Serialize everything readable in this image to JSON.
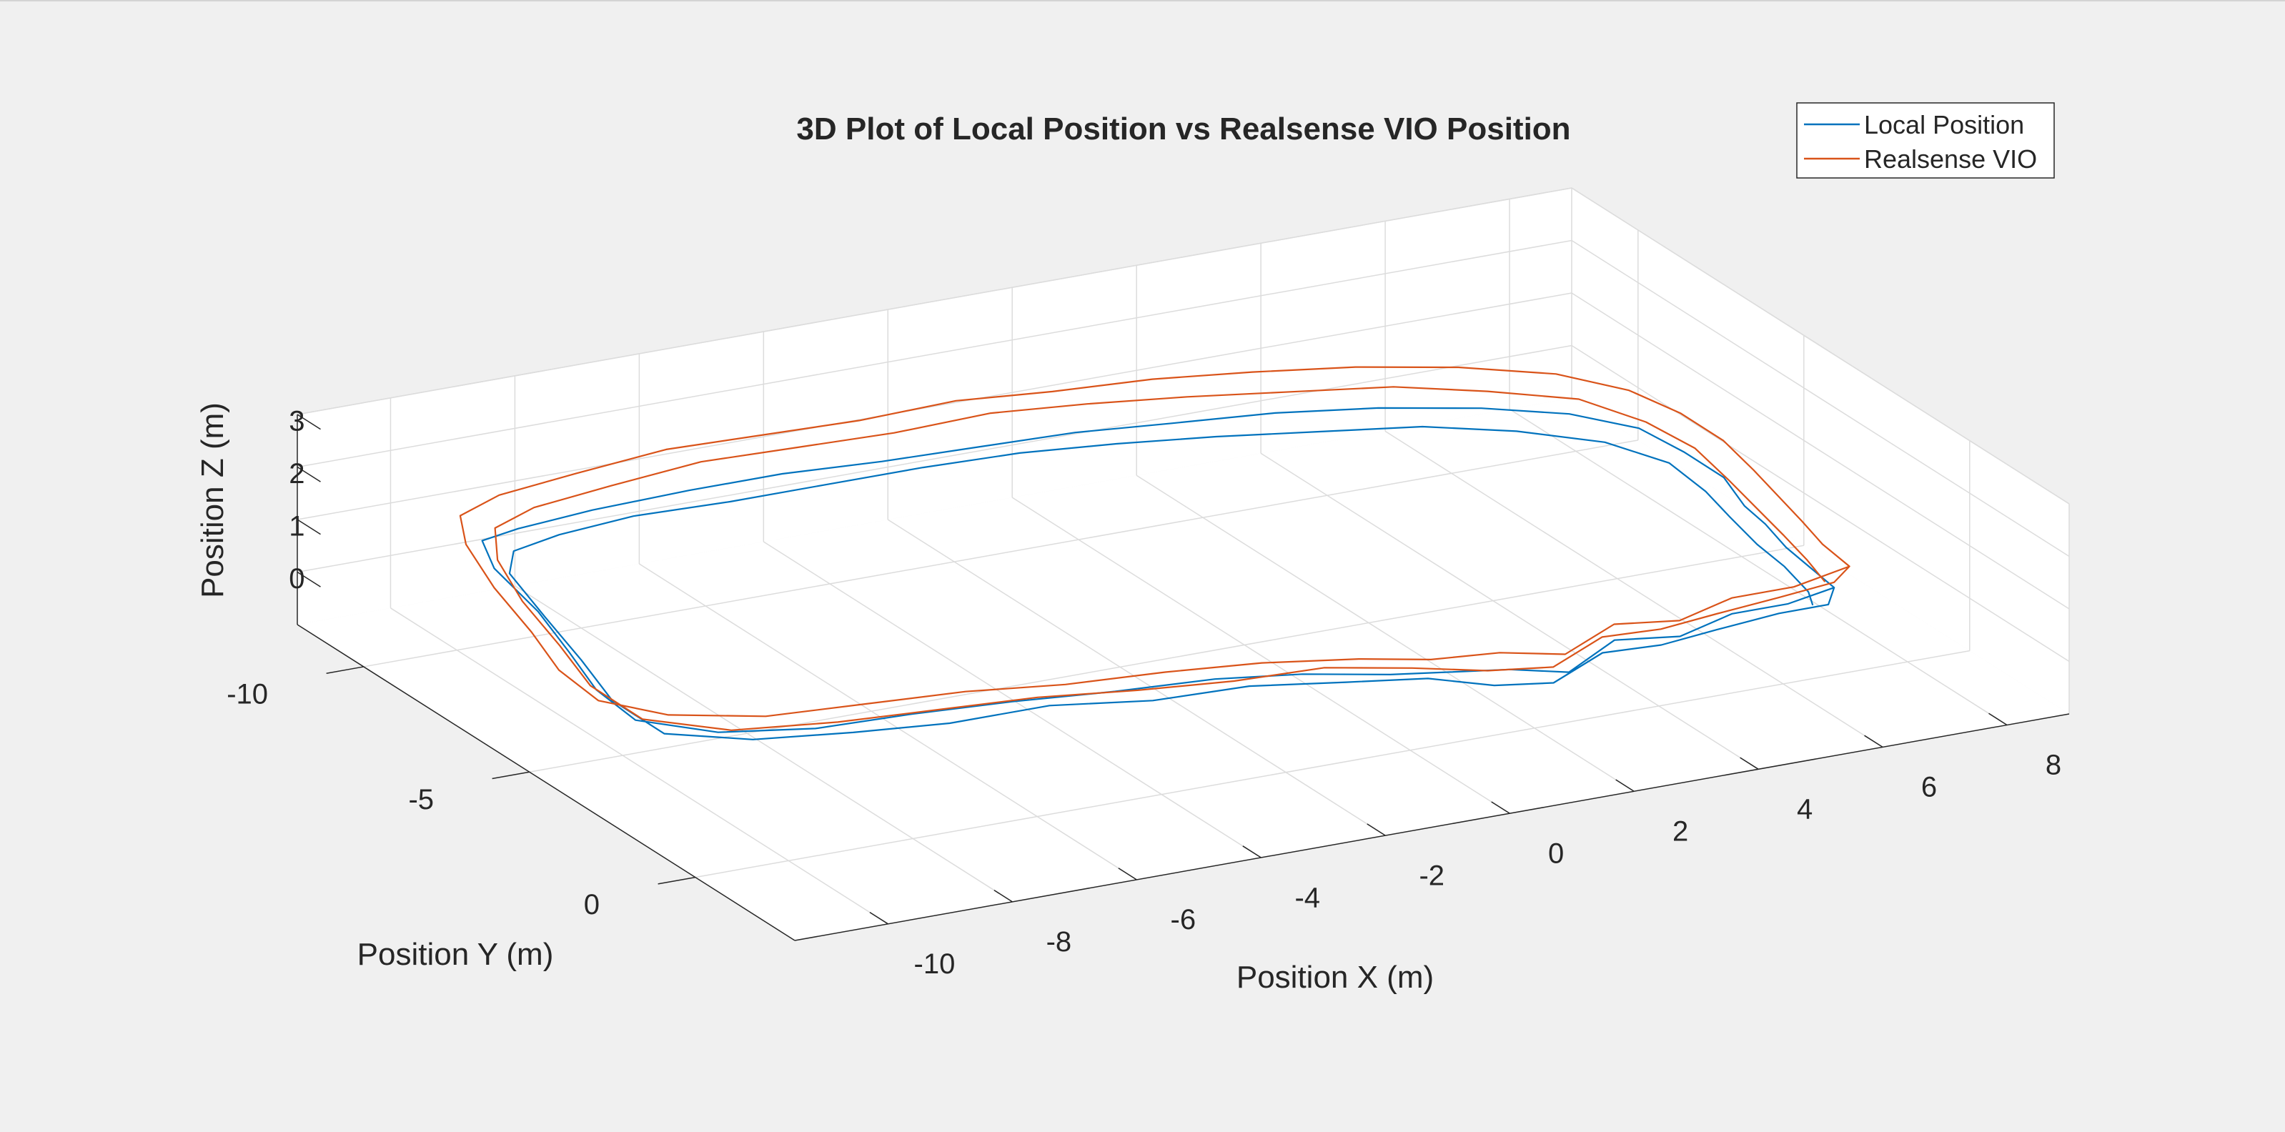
{
  "chart_data": {
    "type": "line3d",
    "title": "3D Plot of Local Position vs Realsense VIO Position",
    "xlabel": "Position X (m)",
    "ylabel": "Position Y (m)",
    "zlabel": "Position Z (m)",
    "xlim": [
      -11.5,
      9
    ],
    "ylim": [
      -12,
      3
    ],
    "zlim": [
      -1,
      3
    ],
    "x_ticks": [
      8,
      6,
      4,
      2,
      0,
      -2,
      -4,
      -6,
      -8,
      -10
    ],
    "y_ticks": [
      -10,
      -5,
      0
    ],
    "z_ticks": [
      0,
      1,
      2,
      3
    ],
    "x_tick_labels": [
      "8",
      "6",
      "4",
      "2",
      "0",
      "-2",
      "-4",
      "-6",
      "-8",
      "-10"
    ],
    "y_tick_labels": [
      "-10",
      "-5",
      "0"
    ],
    "z_tick_labels": [
      "0",
      "1",
      "2",
      "3"
    ],
    "grid": true,
    "legend_position": "top-right",
    "series": [
      {
        "name": "Local Position",
        "color": "#0072BD",
        "points": [
          [
            7.3,
            -0.9,
            0.2
          ],
          [
            6.4,
            -0.6,
            0.2
          ],
          [
            5.5,
            -0.6,
            0.2
          ],
          [
            4.5,
            -0.3,
            0.1
          ],
          [
            3.5,
            -0.4,
            0.2
          ],
          [
            2.5,
            0.1,
            0.0
          ],
          [
            1.6,
            0.0,
            0.2
          ],
          [
            0.8,
            -0.3,
            0.2
          ],
          [
            0.0,
            -0.6,
            0.2
          ],
          [
            -1.2,
            -1.0,
            0.3
          ],
          [
            -2.5,
            -1.2,
            0.4
          ],
          [
            -4.0,
            -1.4,
            0.4
          ],
          [
            -5.5,
            -1.7,
            0.4
          ],
          [
            -7.0,
            -1.9,
            0.4
          ],
          [
            -8.5,
            -2.0,
            0.4
          ],
          [
            -9.8,
            -2.5,
            0.4
          ],
          [
            -10.7,
            -3.3,
            0.5
          ],
          [
            -10.8,
            -4.3,
            0.7
          ],
          [
            -10.6,
            -5.5,
            0.9
          ],
          [
            -10.4,
            -6.8,
            1.1
          ],
          [
            -10.2,
            -8.5,
            1.2
          ],
          [
            -9.7,
            -9.8,
            1.1
          ],
          [
            -8.8,
            -10.4,
            0.9
          ],
          [
            -7.5,
            -10.6,
            0.9
          ],
          [
            -6.0,
            -10.5,
            1.0
          ],
          [
            -4.5,
            -10.5,
            1.0
          ],
          [
            -3.0,
            -10.3,
            1.0
          ],
          [
            -1.5,
            -10.2,
            1.0
          ],
          [
            0.0,
            -10.1,
            1.0
          ],
          [
            1.5,
            -10.0,
            0.9
          ],
          [
            3.0,
            -9.7,
            0.9
          ],
          [
            4.5,
            -9.4,
            0.8
          ],
          [
            6.0,
            -9.1,
            0.6
          ],
          [
            7.2,
            -8.7,
            0.4
          ],
          [
            8.0,
            -8.1,
            0.2
          ],
          [
            8.2,
            -7.1,
            0.1
          ],
          [
            8.3,
            -6.1,
            0.0
          ],
          [
            8.1,
            -5.1,
            -0.1
          ],
          [
            7.9,
            -4.1,
            0.0
          ],
          [
            7.7,
            -3.1,
            0.0
          ],
          [
            7.5,
            -2.0,
            0.1
          ],
          [
            7.3,
            -0.9,
            0.2
          ],
          [
            7.1,
            -0.7,
            0.0
          ],
          [
            6.2,
            -0.5,
            0.1
          ],
          [
            5.2,
            -0.5,
            0.0
          ],
          [
            4.2,
            -0.3,
            0.0
          ],
          [
            3.2,
            -0.2,
            0.1
          ],
          [
            2.2,
            0.2,
            -0.1
          ],
          [
            1.3,
            0.1,
            0.0
          ],
          [
            0.5,
            -0.4,
            0.1
          ],
          [
            -0.6,
            -0.8,
            0.1
          ],
          [
            -2.0,
            -1.1,
            0.2
          ],
          [
            -3.5,
            -1.2,
            0.2
          ],
          [
            -5.0,
            -1.5,
            0.3
          ],
          [
            -6.5,
            -1.7,
            0.2
          ],
          [
            -8.0,
            -1.8,
            0.3
          ],
          [
            -9.4,
            -2.2,
            0.3
          ],
          [
            -10.4,
            -3.0,
            0.3
          ],
          [
            -10.6,
            -4.2,
            0.5
          ],
          [
            -10.4,
            -5.5,
            0.7
          ],
          [
            -10.2,
            -7.0,
            0.9
          ],
          [
            -9.9,
            -8.6,
            1.0
          ],
          [
            -9.3,
            -9.6,
            0.9
          ],
          [
            -8.3,
            -10.1,
            0.8
          ],
          [
            -7.0,
            -10.3,
            0.8
          ],
          [
            -5.5,
            -10.2,
            0.8
          ],
          [
            -4.0,
            -10.2,
            0.8
          ],
          [
            -2.5,
            -10.0,
            0.9
          ],
          [
            -1.0,
            -9.9,
            0.9
          ],
          [
            0.5,
            -9.8,
            0.8
          ],
          [
            2.0,
            -9.6,
            0.7
          ],
          [
            3.5,
            -9.3,
            0.6
          ],
          [
            5.0,
            -9.0,
            0.5
          ],
          [
            6.3,
            -8.6,
            0.3
          ],
          [
            7.4,
            -8.0,
            0.1
          ],
          [
            7.9,
            -7.0,
            0.0
          ],
          [
            7.9,
            -5.9,
            -0.1
          ],
          [
            7.7,
            -4.8,
            -0.1
          ],
          [
            7.5,
            -3.6,
            -0.1
          ],
          [
            7.3,
            -2.4,
            0.0
          ],
          [
            7.1,
            -1.3,
            0.0
          ],
          [
            6.9,
            -0.8,
            0.0
          ]
        ]
      },
      {
        "name": "Realsense VIO",
        "color": "#D95319",
        "points": [
          [
            7.6,
            -1.0,
            0.5
          ],
          [
            6.6,
            -0.8,
            0.4
          ],
          [
            5.6,
            -0.8,
            0.4
          ],
          [
            4.6,
            -0.5,
            0.3
          ],
          [
            3.6,
            -0.6,
            0.4
          ],
          [
            2.6,
            -0.2,
            0.2
          ],
          [
            1.6,
            -0.3,
            0.4
          ],
          [
            0.6,
            -0.5,
            0.4
          ],
          [
            -0.4,
            -0.8,
            0.5
          ],
          [
            -1.8,
            -1.1,
            0.6
          ],
          [
            -3.3,
            -1.2,
            0.7
          ],
          [
            -4.8,
            -1.4,
            0.7
          ],
          [
            -6.3,
            -1.6,
            0.8
          ],
          [
            -7.8,
            -1.8,
            0.8
          ],
          [
            -9.3,
            -2.0,
            0.8
          ],
          [
            -10.6,
            -2.5,
            0.9
          ],
          [
            -11.3,
            -3.3,
            1.0
          ],
          [
            -11.4,
            -4.3,
            1.2
          ],
          [
            -11.2,
            -5.5,
            1.4
          ],
          [
            -11.0,
            -7.0,
            1.6
          ],
          [
            -10.6,
            -8.6,
            1.7
          ],
          [
            -10.0,
            -9.9,
            1.6
          ],
          [
            -9.0,
            -10.6,
            1.5
          ],
          [
            -7.6,
            -10.9,
            1.5
          ],
          [
            -6.1,
            -11.0,
            1.6
          ],
          [
            -4.6,
            -10.9,
            1.6
          ],
          [
            -3.1,
            -10.8,
            1.6
          ],
          [
            -1.6,
            -10.7,
            1.7
          ],
          [
            -0.1,
            -10.6,
            1.6
          ],
          [
            1.4,
            -10.4,
            1.6
          ],
          [
            2.9,
            -10.2,
            1.5
          ],
          [
            4.4,
            -9.9,
            1.4
          ],
          [
            5.9,
            -9.6,
            1.2
          ],
          [
            7.2,
            -9.1,
            1.0
          ],
          [
            8.0,
            -8.4,
            0.8
          ],
          [
            8.3,
            -7.4,
            0.7
          ],
          [
            8.4,
            -6.3,
            0.6
          ],
          [
            8.3,
            -5.2,
            0.5
          ],
          [
            8.1,
            -4.1,
            0.5
          ],
          [
            7.9,
            -3.0,
            0.5
          ],
          [
            7.7,
            -2.0,
            0.5
          ],
          [
            7.6,
            -1.0,
            0.5
          ],
          [
            7.3,
            -0.9,
            0.3
          ],
          [
            6.3,
            -0.7,
            0.3
          ],
          [
            5.3,
            -0.7,
            0.2
          ],
          [
            4.3,
            -0.5,
            0.2
          ],
          [
            3.3,
            -0.4,
            0.3
          ],
          [
            2.3,
            0.0,
            0.1
          ],
          [
            1.3,
            -0.1,
            0.2
          ],
          [
            0.3,
            -0.5,
            0.3
          ],
          [
            -0.9,
            -0.9,
            0.4
          ],
          [
            -2.3,
            -1.0,
            0.4
          ],
          [
            -3.8,
            -1.1,
            0.5
          ],
          [
            -5.3,
            -1.3,
            0.6
          ],
          [
            -6.8,
            -1.5,
            0.6
          ],
          [
            -8.3,
            -1.7,
            0.6
          ],
          [
            -9.8,
            -2.1,
            0.6
          ],
          [
            -10.8,
            -2.9,
            0.7
          ],
          [
            -11.0,
            -4.1,
            0.9
          ],
          [
            -10.8,
            -5.4,
            1.1
          ],
          [
            -10.6,
            -6.9,
            1.3
          ],
          [
            -10.2,
            -8.4,
            1.4
          ],
          [
            -9.6,
            -9.6,
            1.4
          ],
          [
            -8.6,
            -10.3,
            1.3
          ],
          [
            -7.2,
            -10.6,
            1.3
          ],
          [
            -5.7,
            -10.7,
            1.4
          ],
          [
            -4.2,
            -10.6,
            1.4
          ],
          [
            -2.7,
            -10.5,
            1.4
          ],
          [
            -1.2,
            -10.4,
            1.5
          ],
          [
            0.3,
            -10.3,
            1.4
          ],
          [
            1.8,
            -10.1,
            1.3
          ],
          [
            3.3,
            -9.8,
            1.2
          ],
          [
            4.8,
            -9.5,
            1.1
          ],
          [
            6.1,
            -9.1,
            0.9
          ],
          [
            7.3,
            -8.6,
            0.7
          ],
          [
            7.9,
            -7.7,
            0.5
          ],
          [
            8.1,
            -6.6,
            0.4
          ],
          [
            8.0,
            -5.4,
            0.3
          ],
          [
            7.8,
            -4.2,
            0.3
          ],
          [
            7.6,
            -3.0,
            0.3
          ],
          [
            7.4,
            -1.9,
            0.3
          ],
          [
            7.2,
            -1.0,
            0.3
          ]
        ]
      }
    ]
  }
}
